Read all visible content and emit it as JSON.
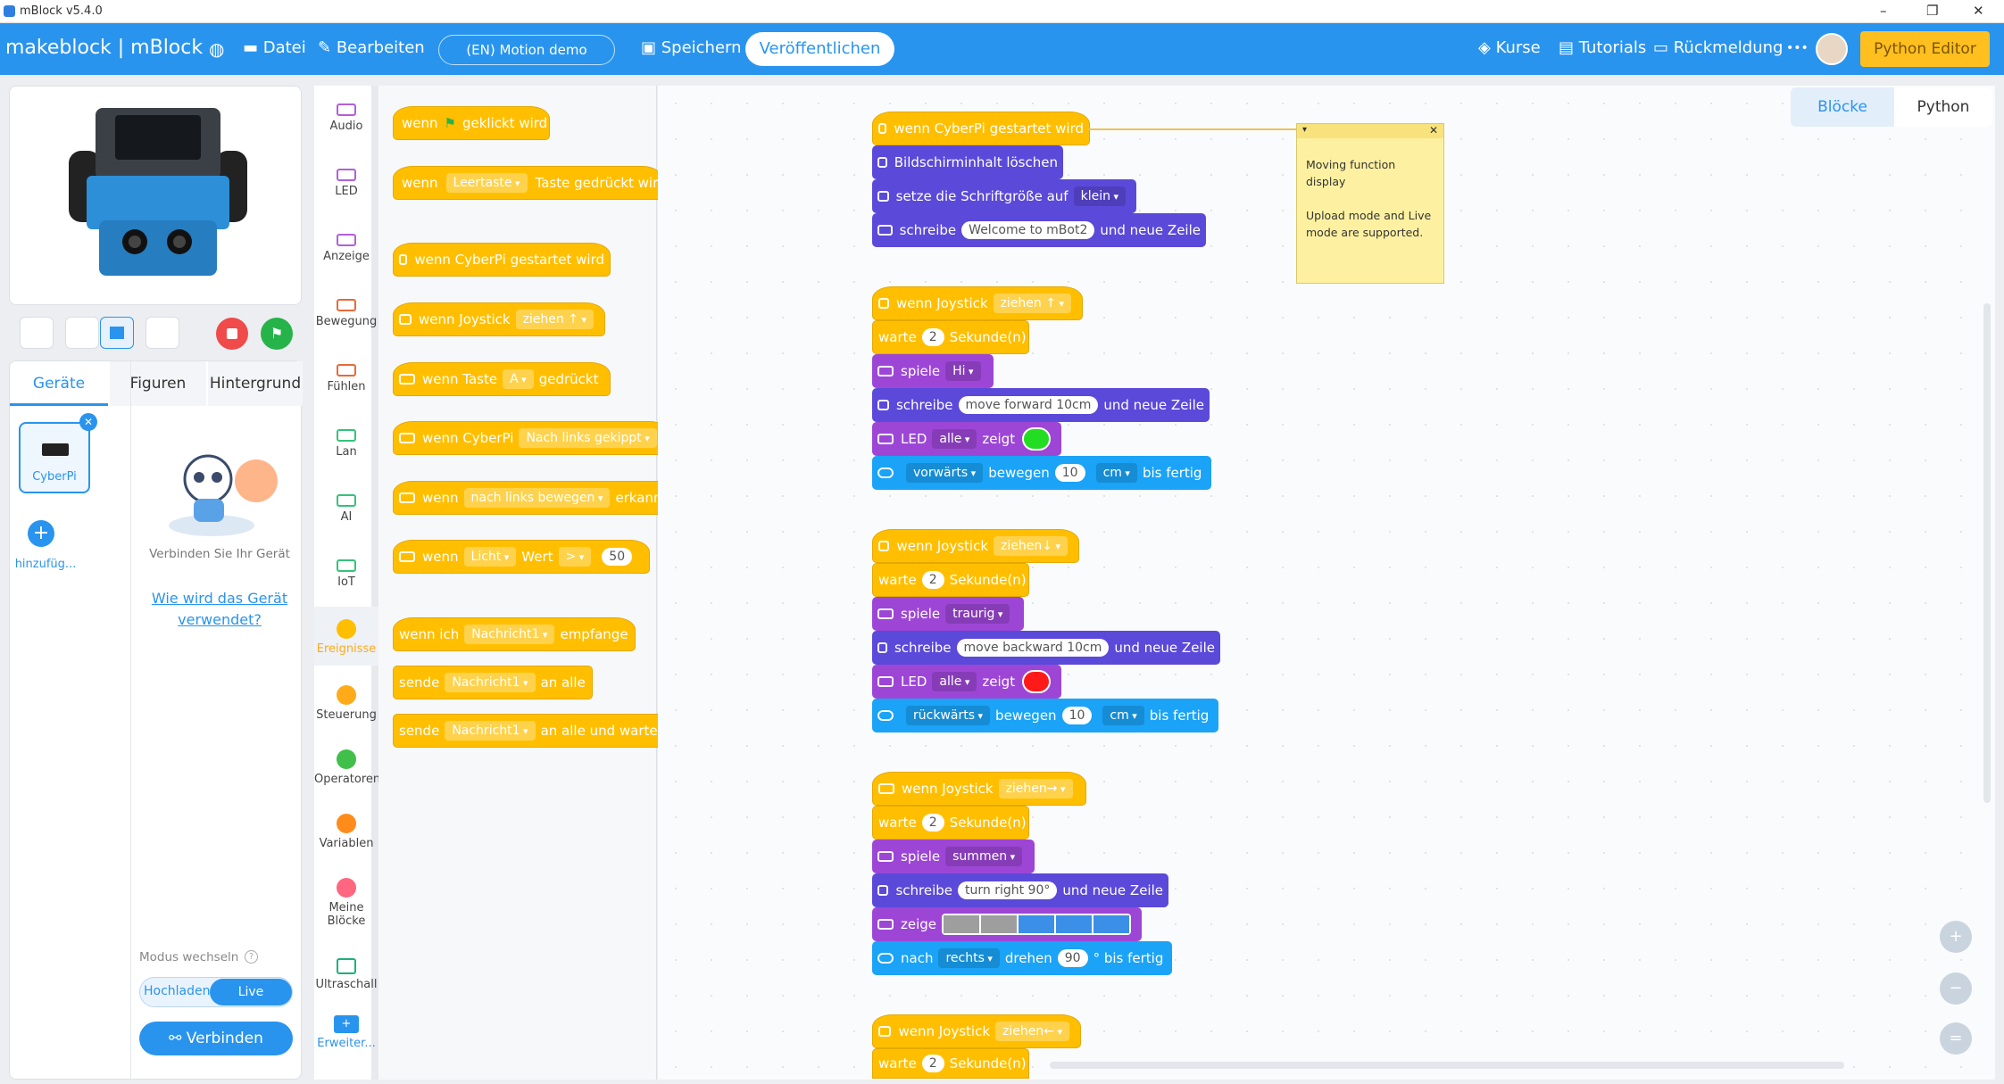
{
  "window": {
    "title": "mBlock v5.4.0",
    "min": "–",
    "max": "❐",
    "close": "✕"
  },
  "menu": {
    "brand": "makeblock | mBlock",
    "file": "Datei",
    "edit": "Bearbeiten",
    "project": "(EN) Motion demo",
    "save": "Speichern",
    "publish": "Veröffentlichen",
    "courses": "Kurse",
    "tutorials": "Tutorials",
    "feedback": "Rückmeldung",
    "more": "•••",
    "python_editor": "Python Editor"
  },
  "left": {
    "tabs": [
      "Geräte",
      "Figuren",
      "Hintergrund"
    ],
    "device": "CyberPi",
    "add": "hinzufüg...",
    "connect_hint": "Verbinden Sie Ihr Gerät",
    "how_link_1": "Wie wird das Gerät",
    "how_link_2": "verwendet?",
    "mode_label": "Modus wechseln",
    "upload": "Hochladen",
    "live": "Live",
    "connect_btn": "Verbinden"
  },
  "categories": [
    "Audio",
    "LED",
    "Anzeige",
    "Bewegung",
    "Fühlen",
    "Lan",
    "AI",
    "IoT",
    "Ereignisse",
    "Steuerung",
    "Operatoren",
    "Variablen",
    "Meine Blöcke",
    "Ultraschall",
    "Erweiter..."
  ],
  "palette": {
    "b1": {
      "a": "wenn",
      "b": "geklickt wird"
    },
    "b2": {
      "a": "wenn",
      "d": "Leertaste",
      "b": "Taste gedrückt wird"
    },
    "b3": {
      "a": "wenn CyberPi gestartet wird"
    },
    "b4": {
      "a": "wenn Joystick",
      "d": "ziehen ↑"
    },
    "b5": {
      "a": "wenn Taste",
      "d": "A",
      "b": "gedrückt"
    },
    "b6": {
      "a": "wenn CyberPi",
      "d": "Nach links gekippt"
    },
    "b7": {
      "a": "wenn",
      "d": "nach links bewegen",
      "b": "erkannt"
    },
    "b8": {
      "a": "wenn",
      "d": "Licht",
      "b": "Wert",
      "d2": ">",
      "v": "50"
    },
    "b9": {
      "a": "wenn ich",
      "d": "Nachricht1",
      "b": "empfange"
    },
    "b10": {
      "a": "sende",
      "d": "Nachricht1",
      "b": "an alle"
    },
    "b11": {
      "a": "sende",
      "d": "Nachricht1",
      "b": "an alle und warte"
    }
  },
  "script": {
    "g1": {
      "hat": "wenn CyberPi gestartet wird",
      "clear": "Bildschirminhalt löschen",
      "font": "setze die Schriftgröße auf",
      "font_v": "klein",
      "write": "schreibe",
      "write_v": "Welcome to mBot2",
      "newline": "und neue Zeile"
    },
    "g2": {
      "hat": "wenn Joystick",
      "hat_d": "ziehen ↑",
      "wait": "warte",
      "wait_v": "2",
      "sec": "Sekunde(n)",
      "play": "spiele",
      "play_v": "Hi",
      "write": "schreibe",
      "write_v": "move forward 10cm",
      "newline": "und neue Zeile",
      "led": "LED",
      "led_d": "alle",
      "shows": "zeigt",
      "move_d": "vorwärts",
      "move": "bewegen",
      "move_v": "10",
      "unit": "cm",
      "done": "bis fertig",
      "color": "#22dd22"
    },
    "g3": {
      "hat": "wenn Joystick",
      "hat_d": "ziehen↓",
      "wait": "warte",
      "wait_v": "2",
      "sec": "Sekunde(n)",
      "play": "spiele",
      "play_v": "traurig",
      "write": "schreibe",
      "write_v": "move backward 10cm",
      "newline": "und neue Zeile",
      "led": "LED",
      "led_d": "alle",
      "shows": "zeigt",
      "move_d": "rückwärts",
      "move": "bewegen",
      "move_v": "10",
      "unit": "cm",
      "done": "bis fertig",
      "color": "#ff1a1a"
    },
    "g4": {
      "hat": "wenn Joystick",
      "hat_d": "ziehen→",
      "wait": "warte",
      "wait_v": "2",
      "sec": "Sekunde(n)",
      "play": "spiele",
      "play_v": "summen",
      "write": "schreibe",
      "write_v": "turn right 90°",
      "newline": "und neue Zeile",
      "show": "zeige",
      "turn": "nach",
      "turn_d": "rechts",
      "rot": "drehen",
      "rot_v": "90",
      "deg": "° bis fertig"
    },
    "g5": {
      "hat": "wenn Joystick",
      "hat_d": "ziehen←",
      "wait": "warte",
      "wait_v": "2",
      "sec": "Sekunde(n)"
    }
  },
  "note": {
    "l1": "Moving function",
    "l2": "display",
    "l3": "Upload mode and Live",
    "l4": "mode are supported."
  },
  "right_tabs": {
    "blocks": "Blöcke",
    "python": "Python"
  }
}
